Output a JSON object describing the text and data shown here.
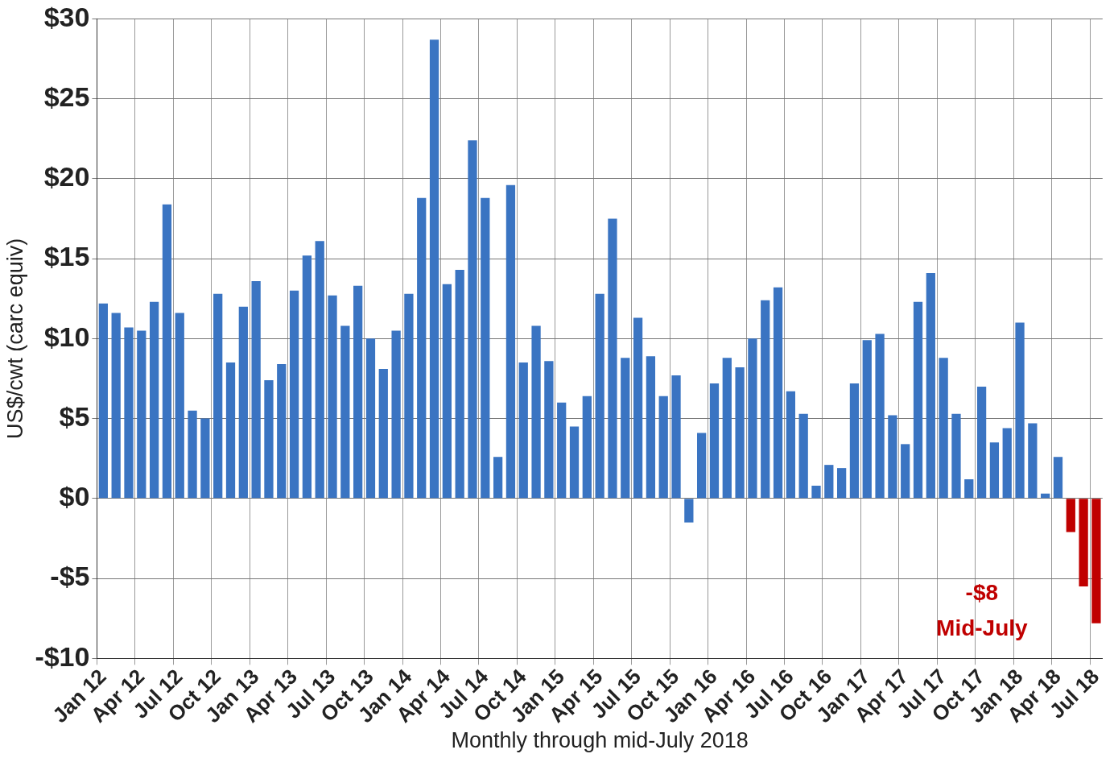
{
  "chart_data": {
    "type": "bar",
    "xlabel": "Monthly through mid-July 2018",
    "ylabel": "US$/cwt (carc equiv)",
    "categories": [
      "Jan 12",
      null,
      null,
      "Apr 12",
      null,
      null,
      "Jul 12",
      null,
      null,
      "Oct 12",
      null,
      null,
      "Jan 13",
      null,
      null,
      "Apr 13",
      null,
      null,
      "Jul 13",
      null,
      null,
      "Oct 13",
      null,
      null,
      "Jan 14",
      null,
      null,
      "Apr 14",
      null,
      null,
      "Jul 14",
      null,
      null,
      "Oct 14",
      null,
      null,
      "Jan 15",
      null,
      null,
      "Apr 15",
      null,
      null,
      "Jul 15",
      null,
      null,
      "Oct 15",
      null,
      null,
      "Jan 16",
      null,
      null,
      "Apr 16",
      null,
      null,
      "Jul 16",
      null,
      null,
      "Oct 16",
      null,
      null,
      "Jan 17",
      null,
      null,
      "Apr 17",
      null,
      null,
      "Jul 17",
      null,
      null,
      "Oct 17",
      null,
      null,
      "Jan 18",
      null,
      null,
      "Apr 18",
      null,
      null,
      "Jul 18"
    ],
    "values": [
      12.2,
      11.6,
      10.7,
      10.5,
      12.3,
      18.4,
      11.6,
      5.5,
      5.0,
      12.8,
      8.5,
      12.0,
      13.6,
      7.4,
      8.4,
      13.0,
      15.2,
      16.1,
      12.7,
      10.8,
      13.3,
      10.0,
      8.1,
      10.5,
      12.8,
      18.8,
      28.7,
      13.4,
      14.3,
      22.4,
      18.8,
      2.6,
      19.6,
      8.5,
      10.8,
      8.6,
      6.0,
      4.5,
      6.4,
      12.8,
      17.5,
      8.8,
      11.3,
      8.9,
      6.4,
      7.7,
      -1.5,
      4.1,
      7.2,
      8.8,
      8.2,
      10.0,
      12.4,
      13.2,
      6.7,
      5.3,
      0.8,
      2.1,
      1.9,
      7.2,
      9.9,
      10.3,
      5.2,
      3.4,
      12.3,
      14.1,
      8.8,
      5.3,
      1.2,
      7.0,
      3.5,
      4.4,
      11.0,
      4.7,
      0.3,
      2.6,
      -2.1,
      -5.5,
      -7.8
    ],
    "colors": [
      "#3a74c2",
      "#3a74c2",
      "#3a74c2",
      "#3a74c2",
      "#3a74c2",
      "#3a74c2",
      "#3a74c2",
      "#3a74c2",
      "#3a74c2",
      "#3a74c2",
      "#3a74c2",
      "#3a74c2",
      "#3a74c2",
      "#3a74c2",
      "#3a74c2",
      "#3a74c2",
      "#3a74c2",
      "#3a74c2",
      "#3a74c2",
      "#3a74c2",
      "#3a74c2",
      "#3a74c2",
      "#3a74c2",
      "#3a74c2",
      "#3a74c2",
      "#3a74c2",
      "#3a74c2",
      "#3a74c2",
      "#3a74c2",
      "#3a74c2",
      "#3a74c2",
      "#3a74c2",
      "#3a74c2",
      "#3a74c2",
      "#3a74c2",
      "#3a74c2",
      "#3a74c2",
      "#3a74c2",
      "#3a74c2",
      "#3a74c2",
      "#3a74c2",
      "#3a74c2",
      "#3a74c2",
      "#3a74c2",
      "#3a74c2",
      "#3a74c2",
      "#3a74c2",
      "#3a74c2",
      "#3a74c2",
      "#3a74c2",
      "#3a74c2",
      "#3a74c2",
      "#3a74c2",
      "#3a74c2",
      "#3a74c2",
      "#3a74c2",
      "#3a74c2",
      "#3a74c2",
      "#3a74c2",
      "#3a74c2",
      "#3a74c2",
      "#3a74c2",
      "#3a74c2",
      "#3a74c2",
      "#3a74c2",
      "#3a74c2",
      "#3a74c2",
      "#3a74c2",
      "#3a74c2",
      "#3a74c2",
      "#3a74c2",
      "#3a74c2",
      "#3a74c2",
      "#3a74c2",
      "#3a74c2",
      "#3a74c2",
      "#c00000",
      "#c00000",
      "#c00000"
    ],
    "ylim": [
      -10,
      30
    ],
    "yticks": [
      {
        "value": -10,
        "label": "-$10"
      },
      {
        "value": -5,
        "label": "-$5"
      },
      {
        "value": 0,
        "label": "$0"
      },
      {
        "value": 5,
        "label": "$5"
      },
      {
        "value": 10,
        "label": "$10"
      },
      {
        "value": 15,
        "label": "$15"
      },
      {
        "value": 20,
        "label": "$20"
      },
      {
        "value": 25,
        "label": "$25"
      },
      {
        "value": 30,
        "label": "$30"
      }
    ],
    "grid": true,
    "annotations": [
      "-$8 Mid-July"
    ]
  }
}
